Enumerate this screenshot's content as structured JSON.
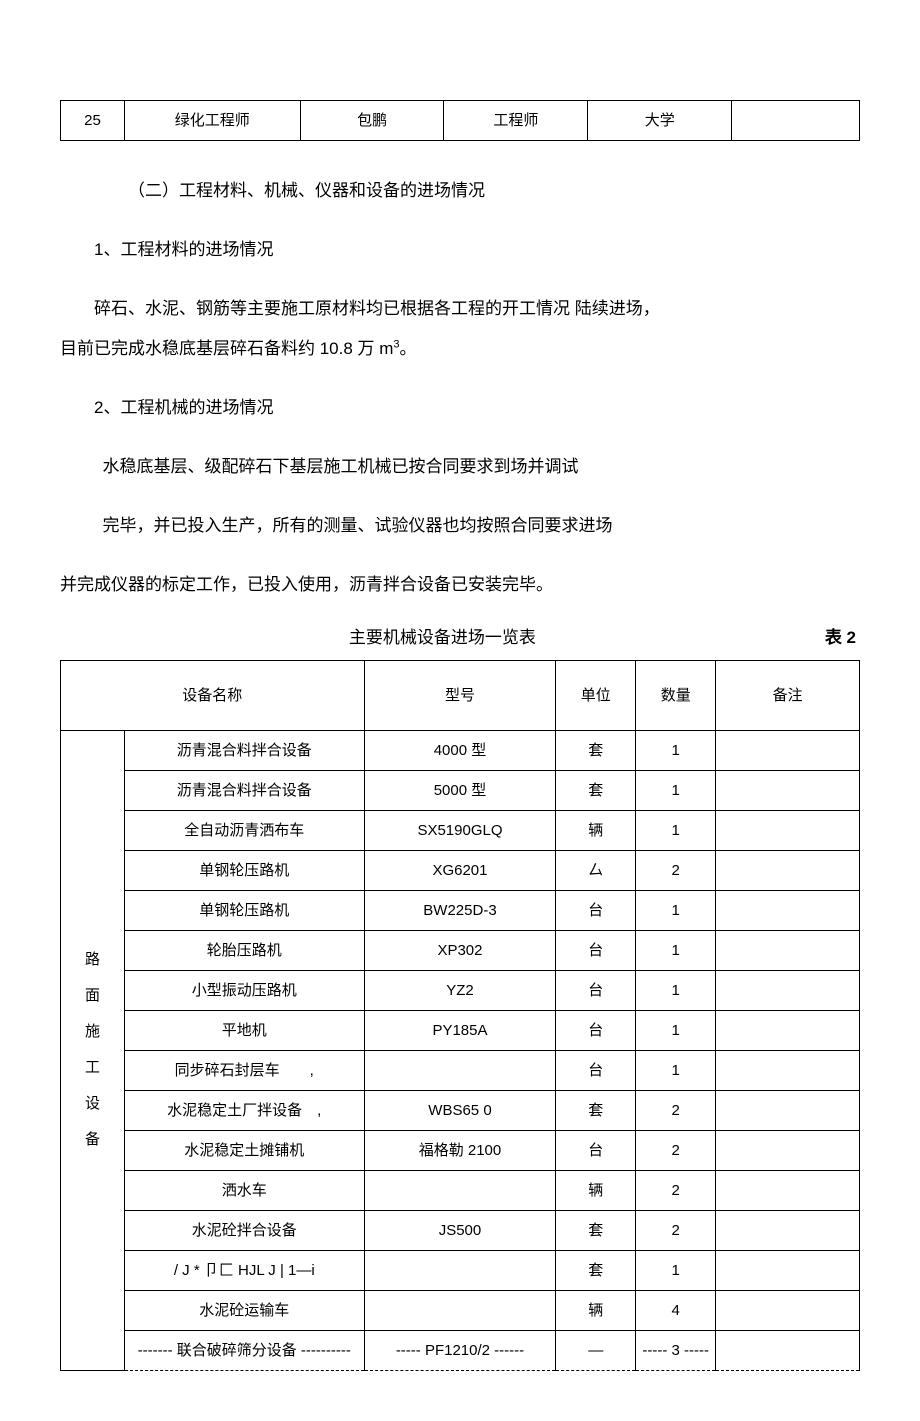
{
  "top_table": {
    "idx": "25",
    "role": "绿化工程师",
    "name": "包鹏",
    "title": "工程师",
    "edu": "大学",
    "note": ""
  },
  "paragraphs": {
    "h2": "（二）工程材料、机械、仪器和设备的进场情况",
    "p1": "1、工程材料的进场情况",
    "p2_a": "碎石、水泥、钢筋等主要施工原材料均已根据各工程的开工情况 陆续进场，",
    "p2_b": "目前已完成水稳底基层碎石备料约 10.8 万 m",
    "p2_sup": "3",
    "p2_c": "。",
    "p3": "2、工程机械的进场情况",
    "p4": "水稳底基层、级配碎石下基层施工机械已按合同要求到场并调试",
    "p5": "完毕，并已投入生产，所有的测量、试验仪器也均按照合同要求进场",
    "p6": "并完成仪器的标定工作，已投入使用，沥青拌合设备已安装完毕。"
  },
  "table2": {
    "title": "主要机械设备进场一览表",
    "label": "表 2",
    "headers": {
      "name": "设备名称",
      "model": "型号",
      "unit": "单位",
      "qty": "数量",
      "note": "备注"
    },
    "category": "路\n面\n施\n工\n设\n备",
    "rows": [
      {
        "name": "沥青混合料拌合设备",
        "model": "4000 型",
        "unit": "套",
        "qty": "1",
        "note": ""
      },
      {
        "name": "沥青混合料拌合设备",
        "model": "5000 型",
        "unit": "套",
        "qty": "1",
        "note": ""
      },
      {
        "name": "全自动沥青洒布车",
        "model": "SX5190GLQ",
        "unit": "辆",
        "qty": "1",
        "note": ""
      },
      {
        "name": "单钢轮压路机",
        "model": "XG6201",
        "unit": "厶",
        "qty": "2",
        "note": ""
      },
      {
        "name": "单钢轮压路机",
        "model": "BW225D-3",
        "unit": "台",
        "qty": "1",
        "note": ""
      },
      {
        "name": "轮胎压路机",
        "model": "XP302",
        "unit": "台",
        "qty": "1",
        "note": ""
      },
      {
        "name": "小型振动压路机",
        "model": "YZ2",
        "unit": "台",
        "qty": "1",
        "note": ""
      },
      {
        "name": "平地机",
        "model": "PY185A",
        "unit": "台",
        "qty": "1",
        "note": ""
      },
      {
        "name": "同步碎石封层车　　,",
        "model": "",
        "unit": "台",
        "qty": "1",
        "note": ""
      },
      {
        "name": "水泥稳定土厂拌设备　,",
        "model": "WBS65 0",
        "unit": "套",
        "qty": "2",
        "note": ""
      },
      {
        "name": "水泥稳定土摊铺机",
        "model": "福格勒 2100",
        "unit": "台",
        "qty": "2",
        "note": ""
      },
      {
        "name": "洒水车",
        "model": "",
        "unit": "辆",
        "qty": "2",
        "note": ""
      },
      {
        "name": "水泥砼拌合设备",
        "model": "JS500",
        "unit": "套",
        "qty": "2",
        "note": ""
      },
      {
        "name": "/ J * 卩匚 HJL J | 1—i",
        "model": "",
        "unit": "套",
        "qty": "1",
        "note": ""
      },
      {
        "name": "水泥砼运输车",
        "model": "",
        "unit": "辆",
        "qty": "4",
        "note": ""
      },
      {
        "name": "------- 联合破碎筛分设备 ----------",
        "model": "----- PF1210/2 ------",
        "unit": "—",
        "qty": "----- 3 -----",
        "note": "",
        "dashed": true
      }
    ]
  }
}
